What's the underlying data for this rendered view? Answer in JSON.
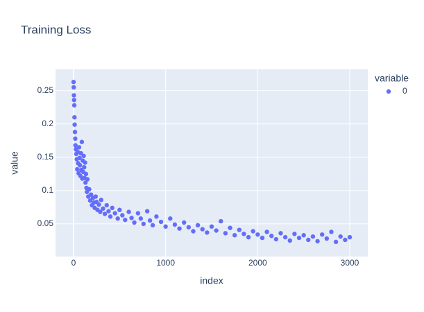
{
  "chart_data": {
    "type": "scatter",
    "title": "Training Loss",
    "x_label": "index",
    "y_label": "value",
    "legend_title": "variable",
    "grid": true,
    "legend_position": "right",
    "xlim": [
      -196,
      3196
    ],
    "ylim": [
      0.001,
      0.282
    ],
    "xticks": [
      0,
      1000,
      2000,
      3000
    ],
    "yticks": [
      0.05,
      0.1,
      0.15,
      0.2,
      0.25
    ],
    "x": [
      0,
      2,
      4,
      6,
      8,
      10,
      12,
      15,
      18,
      20,
      25,
      30,
      35,
      40,
      45,
      50,
      55,
      60,
      65,
      70,
      75,
      80,
      85,
      90,
      95,
      100,
      105,
      110,
      115,
      120,
      125,
      130,
      135,
      140,
      145,
      150,
      160,
      170,
      180,
      190,
      200,
      210,
      220,
      230,
      240,
      250,
      260,
      275,
      290,
      300,
      320,
      340,
      360,
      380,
      400,
      420,
      450,
      480,
      500,
      530,
      560,
      600,
      630,
      660,
      700,
      730,
      760,
      800,
      830,
      860,
      900,
      950,
      1000,
      1050,
      1100,
      1150,
      1200,
      1250,
      1300,
      1350,
      1400,
      1450,
      1500,
      1550,
      1600,
      1650,
      1700,
      1750,
      1800,
      1850,
      1900,
      1950,
      2000,
      2050,
      2100,
      2150,
      2200,
      2250,
      2300,
      2350,
      2400,
      2450,
      2500,
      2550,
      2600,
      2650,
      2700,
      2750,
      2800,
      2850,
      2900,
      2950,
      3000
    ],
    "series": [
      {
        "name": "0",
        "color": "#636efa",
        "values": [
          0.263,
          0.255,
          0.243,
          0.236,
          0.228,
          0.21,
          0.199,
          0.188,
          0.178,
          0.168,
          0.162,
          0.155,
          0.147,
          0.132,
          0.158,
          0.141,
          0.126,
          0.165,
          0.149,
          0.138,
          0.122,
          0.156,
          0.131,
          0.173,
          0.118,
          0.145,
          0.128,
          0.152,
          0.135,
          0.119,
          0.142,
          0.112,
          0.125,
          0.104,
          0.098,
          0.117,
          0.091,
          0.102,
          0.085,
          0.094,
          0.078,
          0.089,
          0.082,
          0.074,
          0.091,
          0.083,
          0.071,
          0.079,
          0.068,
          0.086,
          0.073,
          0.065,
          0.078,
          0.069,
          0.061,
          0.074,
          0.066,
          0.058,
          0.071,
          0.063,
          0.056,
          0.068,
          0.059,
          0.052,
          0.066,
          0.058,
          0.05,
          0.069,
          0.055,
          0.048,
          0.061,
          0.053,
          0.046,
          0.058,
          0.049,
          0.043,
          0.052,
          0.045,
          0.039,
          0.048,
          0.042,
          0.037,
          0.046,
          0.04,
          0.054,
          0.036,
          0.044,
          0.033,
          0.041,
          0.035,
          0.03,
          0.039,
          0.034,
          0.029,
          0.038,
          0.032,
          0.027,
          0.036,
          0.03,
          0.025,
          0.035,
          0.029,
          0.033,
          0.026,
          0.031,
          0.024,
          0.034,
          0.028,
          0.038,
          0.023,
          0.031,
          0.026,
          0.03
        ]
      }
    ]
  }
}
